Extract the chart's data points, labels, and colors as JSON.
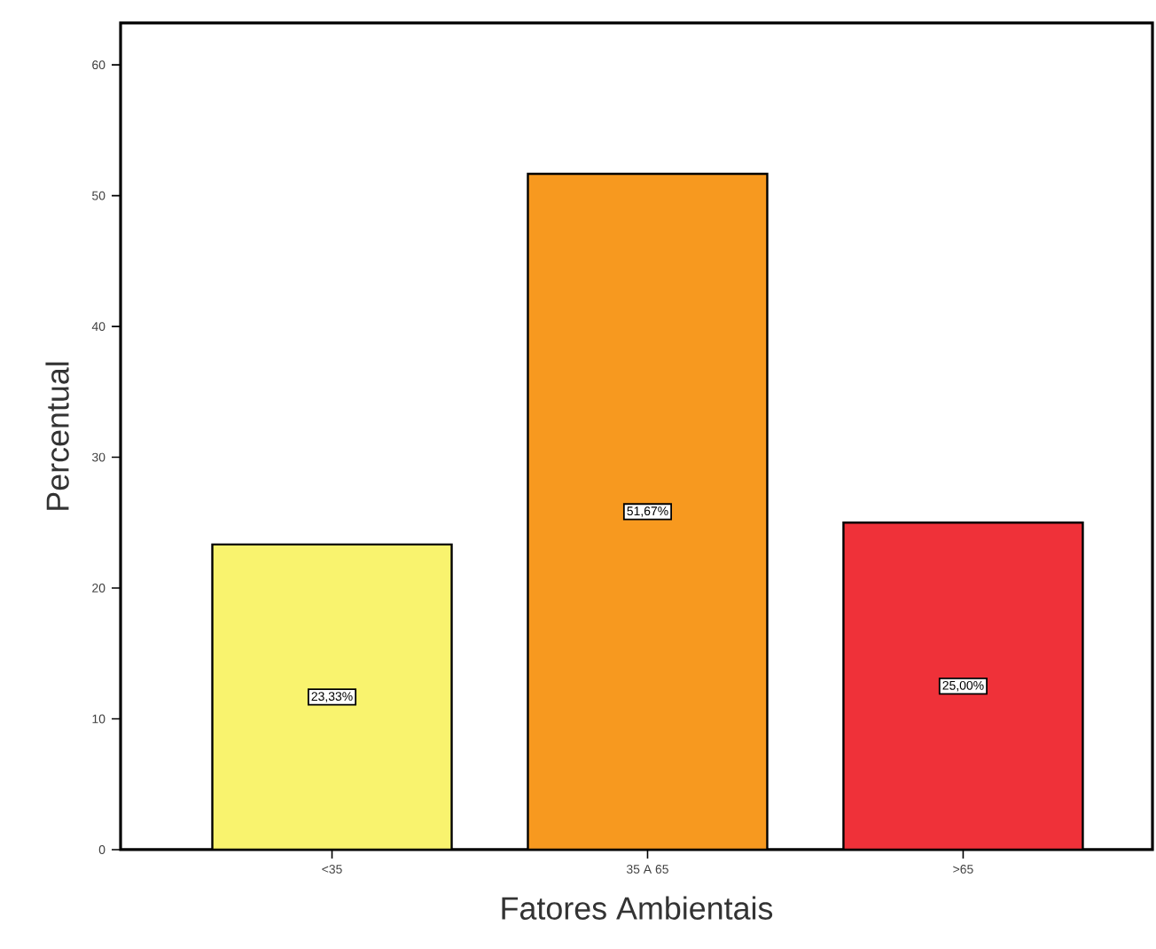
{
  "chart_data": {
    "type": "bar",
    "xlabel": "Fatores Ambientais",
    "ylabel": "Percentual",
    "categories": [
      "<35",
      "35 A 65",
      ">65"
    ],
    "values": [
      23.33,
      51.67,
      25.0
    ],
    "colors": [
      "#f9f36e",
      "#f7991f",
      "#ef3139"
    ],
    "value_labels": [
      "23,33%",
      "51,67%",
      "25,00%"
    ],
    "ylim": [
      0,
      63.2
    ],
    "yticks": [
      0,
      10,
      20,
      30,
      40,
      50,
      60
    ]
  }
}
